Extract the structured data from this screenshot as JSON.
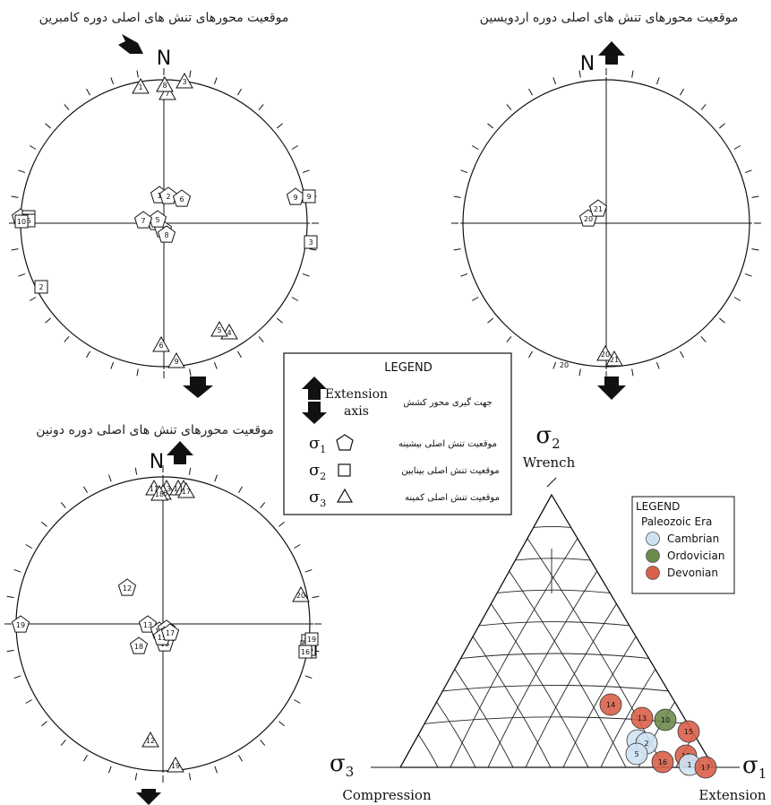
{
  "stereonets": {
    "cambrian": {
      "title": "موقعیت محورهای تنش های اصلی دوره کامبرین",
      "north": "N",
      "sigma1": [
        "1",
        "2",
        "3",
        "4",
        "5",
        "6",
        "7",
        "8",
        "9",
        "10"
      ],
      "sigma2": [
        "1",
        "2",
        "3",
        "6",
        "9",
        "10"
      ],
      "sigma3": [
        "1",
        "3",
        "4",
        "5",
        "6",
        "7",
        "8",
        "9"
      ]
    },
    "ordovician": {
      "title": "موقعیت محورهای تنش های اصلی دوره اردویسین",
      "north": "N",
      "sigma1": [
        "20",
        "21"
      ],
      "sigma3": [
        "20",
        "21"
      ],
      "extra_label": "20"
    },
    "devonian": {
      "title": "موقعیت محورهای تنش های اصلی دوره دونین",
      "north": "N",
      "sigma1": [
        "12",
        "18",
        "13",
        "16",
        "14",
        "11",
        "15",
        "17",
        "19"
      ],
      "sigma2": [
        "11",
        "12",
        "13",
        "14",
        "15",
        "16",
        "19"
      ],
      "sigma3": [
        "11",
        "12",
        "13",
        "14",
        "15",
        "16",
        "17",
        "18",
        "19",
        "20"
      ]
    }
  },
  "legend_box": {
    "title": "LEGEND",
    "extension_axis": "Extension axis",
    "extension_axis_line1": "Extension",
    "extension_axis_line2": "axis",
    "extension_axis_fa": "جهت گیری محور کشش",
    "sigma1_fa": "موقعیت تنش اصلی بیشینه",
    "sigma2_fa": "موقعیت تنش اصلی بینابین",
    "sigma3_fa": "موقعیت تنش اصلی کمینه",
    "sigma1": "σ1",
    "sigma2": "σ2",
    "sigma3": "σ3"
  },
  "ternary": {
    "top_symbol": "σ2",
    "top_label": "Wrench",
    "left_symbol": "σ3",
    "left_label": "Compression",
    "right_symbol": "σ1",
    "right_label": "Extension",
    "legend": {
      "title": "LEGEND",
      "subtitle": "Paleozoic Era",
      "items": [
        {
          "label": "Cambrian",
          "color": "#cfe2f3"
        },
        {
          "label": "Ordovician",
          "color": "#6e8b4e"
        },
        {
          "label": "Devonian",
          "color": "#d9604a"
        }
      ]
    },
    "points": [
      {
        "label": "14",
        "era": "Devonian"
      },
      {
        "label": "13",
        "era": "Devonian"
      },
      {
        "label": "10",
        "era": "Ordovician"
      },
      {
        "label": "15",
        "era": "Devonian"
      },
      {
        "label": "6",
        "era": "Cambrian"
      },
      {
        "label": "2",
        "era": "Cambrian"
      },
      {
        "label": "5",
        "era": "Cambrian"
      },
      {
        "label": "18",
        "era": "Devonian"
      },
      {
        "label": "16",
        "era": "Devonian"
      },
      {
        "label": "1",
        "era": "Cambrian"
      },
      {
        "label": "17",
        "era": "Devonian"
      }
    ]
  }
}
